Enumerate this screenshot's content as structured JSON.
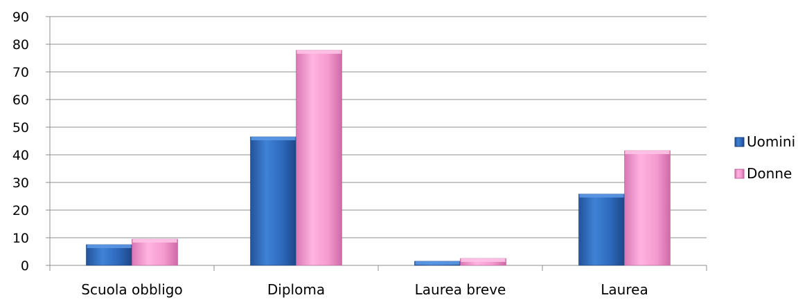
{
  "chart_data": {
    "type": "bar",
    "categories": [
      "Scuola obbligo",
      "Diploma",
      "Laurea breve",
      "Laurea"
    ],
    "series": [
      {
        "name": "Uomini",
        "values": [
          7.5,
          46.5,
          1.5,
          25.8
        ],
        "color": "#2e6bbf"
      },
      {
        "name": "Donne",
        "values": [
          9.5,
          77.8,
          2.5,
          41.5
        ],
        "color": "#f39acf"
      }
    ],
    "ylim": [
      0,
      90
    ],
    "yticks": [
      0,
      10,
      20,
      30,
      40,
      50,
      60,
      70,
      80,
      90
    ],
    "grid": true,
    "legend": "right"
  }
}
